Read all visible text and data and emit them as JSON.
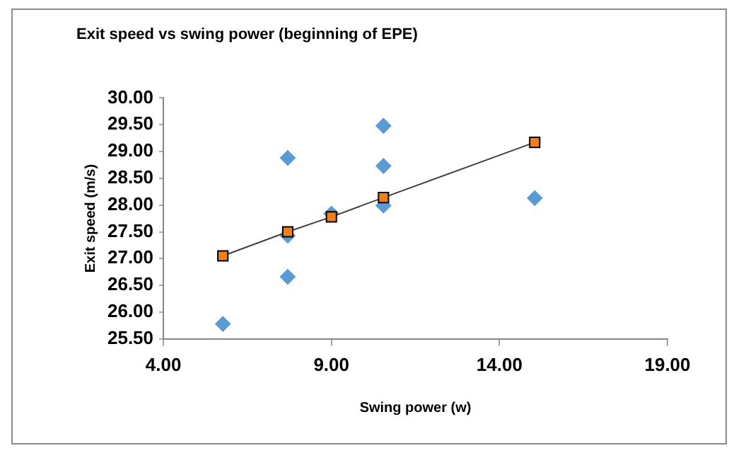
{
  "chart_data": {
    "type": "scatter",
    "title": "Exit speed vs swing power (beginning of EPE)",
    "xlabel": "Swing power (w)",
    "ylabel": "Exit speed (m/s)",
    "xlim": [
      4,
      19
    ],
    "xticks": [
      {
        "value": 4,
        "label": "4.00"
      },
      {
        "value": 9,
        "label": "9.00"
      },
      {
        "value": 14,
        "label": "14.00"
      },
      {
        "value": 19,
        "label": "19.00"
      }
    ],
    "ylim": [
      25.5,
      30
    ],
    "yticks": [
      {
        "value": 25.5,
        "label": "25.50"
      },
      {
        "value": 26,
        "label": "26.00"
      },
      {
        "value": 26.5,
        "label": "26.50"
      },
      {
        "value": 27,
        "label": "27.00"
      },
      {
        "value": 27.5,
        "label": "27.50"
      },
      {
        "value": 28,
        "label": "28.00"
      },
      {
        "value": 28.5,
        "label": "28.50"
      },
      {
        "value": 29,
        "label": "29.00"
      },
      {
        "value": 29.5,
        "label": "29.50"
      },
      {
        "value": 30,
        "label": "30.00"
      }
    ],
    "grid": false,
    "legend": false,
    "series": [
      {
        "marker": "diamond",
        "color": "#5b9bd5",
        "x": [
          5.77,
          7.7,
          7.7,
          7.7,
          9.0,
          10.55,
          10.55,
          10.55,
          15.05
        ],
        "values": [
          25.78,
          28.88,
          27.43,
          26.66,
          27.84,
          29.48,
          28.73,
          27.99,
          28.13
        ]
      },
      {
        "type": "line",
        "marker": "square",
        "color": "#f07f1e",
        "x": [
          5.77,
          7.7,
          9.0,
          10.55,
          15.05
        ],
        "values": [
          27.05,
          27.5,
          27.78,
          28.14,
          29.17
        ]
      }
    ]
  }
}
